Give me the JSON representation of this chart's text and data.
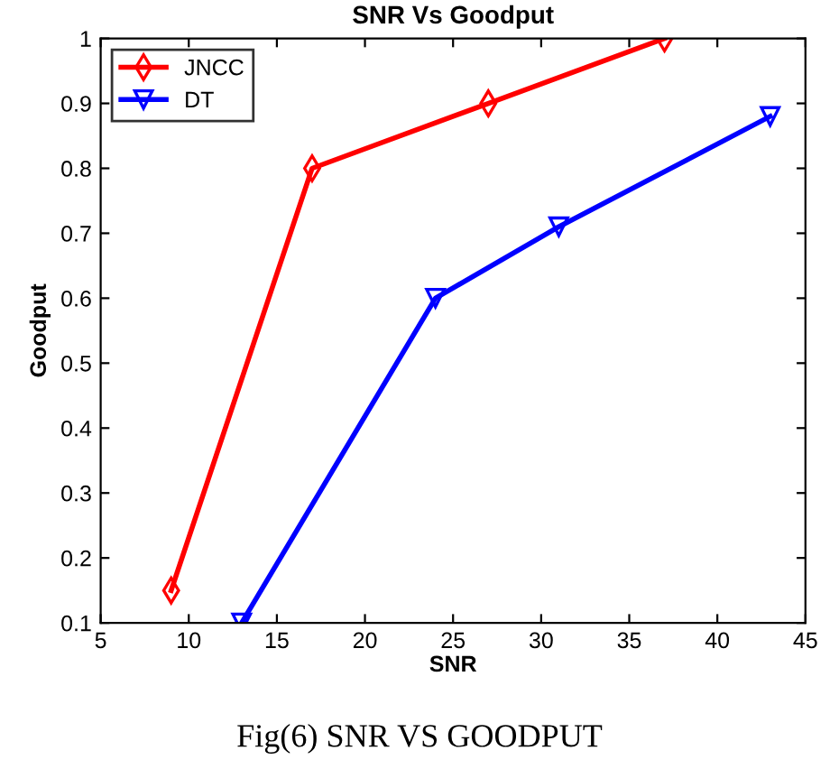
{
  "chart_data": {
    "type": "line",
    "title": "SNR Vs Goodput",
    "xlabel": "SNR",
    "ylabel": "Goodput",
    "xlim": [
      5,
      45
    ],
    "xticks": [
      5,
      10,
      15,
      20,
      25,
      30,
      35,
      40,
      45
    ],
    "ylim": [
      0.1,
      1
    ],
    "yticks": [
      0.1,
      0.2,
      0.3,
      0.4,
      0.5,
      0.6,
      0.7,
      0.8,
      0.9,
      1
    ],
    "legend": "top left",
    "grid": false,
    "series": [
      {
        "name": "JNCC",
        "color": "#ff0000",
        "marker": "diamond",
        "x": [
          9,
          17,
          27,
          37
        ],
        "values": [
          0.15,
          0.8,
          0.9,
          1.0
        ]
      },
      {
        "name": "DT",
        "color": "#0000ff",
        "marker": "triangle",
        "x": [
          13,
          24,
          31,
          43
        ],
        "values": [
          0.1,
          0.6,
          0.71,
          0.88
        ]
      }
    ],
    "annotations": [
      "Fig(6) SNR VS GOODPUT"
    ]
  }
}
